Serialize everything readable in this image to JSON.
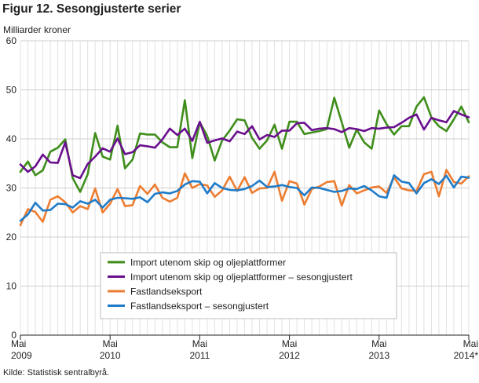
{
  "chart_data": {
    "type": "line",
    "title": "Figur 12. Sesongjusterte serier",
    "ylabel": "Milliarder kroner",
    "xlabel": "",
    "source": "Kilde: Statistisk sentralbyrå.",
    "ylim": [
      0,
      60
    ],
    "yticks": [
      0,
      10,
      20,
      30,
      40,
      50,
      60
    ],
    "grid": true,
    "legend_position": "lower-center",
    "x": [
      "2009-05",
      "2009-06",
      "2009-07",
      "2009-08",
      "2009-09",
      "2009-10",
      "2009-11",
      "2009-12",
      "2010-01",
      "2010-02",
      "2010-03",
      "2010-04",
      "2010-05",
      "2010-06",
      "2010-07",
      "2010-08",
      "2010-09",
      "2010-10",
      "2010-11",
      "2010-12",
      "2011-01",
      "2011-02",
      "2011-03",
      "2011-04",
      "2011-05",
      "2011-06",
      "2011-07",
      "2011-08",
      "2011-09",
      "2011-10",
      "2011-11",
      "2011-12",
      "2012-01",
      "2012-02",
      "2012-03",
      "2012-04",
      "2012-05",
      "2012-06",
      "2012-07",
      "2012-08",
      "2012-09",
      "2012-10",
      "2012-11",
      "2012-12",
      "2013-01",
      "2013-02",
      "2013-03",
      "2013-04",
      "2013-05",
      "2013-06",
      "2013-07",
      "2013-08",
      "2013-09",
      "2013-10",
      "2013-11",
      "2013-12",
      "2014-01",
      "2014-02",
      "2014-03",
      "2014-04",
      "2014-05"
    ],
    "xticks": [
      {
        "index": 0,
        "line1": "Mai",
        "line2": "2009"
      },
      {
        "index": 12,
        "line1": "Mai",
        "line2": "2010"
      },
      {
        "index": 24,
        "line1": "Mai",
        "line2": "2011"
      },
      {
        "index": 36,
        "line1": "Mai",
        "line2": "2012"
      },
      {
        "index": 48,
        "line1": "Mai",
        "line2": "2013"
      },
      {
        "index": 60,
        "line1": "Mai",
        "line2": "2014*"
      }
    ],
    "series": [
      {
        "name": "Import utenom skip og oljeplattformer",
        "color": "#3f8e1b",
        "values": [
          33.3,
          35.4,
          32.6,
          33.6,
          37.4,
          38.2,
          39.9,
          32.0,
          29.2,
          32.8,
          41.2,
          36.4,
          35.8,
          42.7,
          34.0,
          35.8,
          41.1,
          40.9,
          40.9,
          39.3,
          38.3,
          38.3,
          47.9,
          36.1,
          43.4,
          40.6,
          35.6,
          39.7,
          41.7,
          44.0,
          43.8,
          40.2,
          38.0,
          39.7,
          42.9,
          38.0,
          43.5,
          43.5,
          41.0,
          41.3,
          41.6,
          42.0,
          48.4,
          43.4,
          38.2,
          41.9,
          39.3,
          38.0,
          45.8,
          43.0,
          40.9,
          42.6,
          42.6,
          46.6,
          48.5,
          44.4,
          42.6,
          41.6,
          44.0,
          46.6,
          43.4
        ]
      },
      {
        "name": "Import utenom skip og oljeplattformer – sesongjustert",
        "color": "#6a0f8e",
        "values": [
          34.8,
          33.3,
          34.4,
          36.8,
          35.2,
          35.1,
          39.3,
          32.6,
          32.0,
          34.9,
          36.4,
          38.1,
          37.4,
          40.1,
          36.9,
          37.3,
          38.7,
          38.5,
          38.2,
          39.9,
          42.1,
          40.8,
          42.1,
          39.6,
          43.5,
          39.2,
          39.7,
          40.1,
          39.5,
          41.5,
          41.0,
          42.6,
          39.9,
          40.8,
          40.4,
          41.7,
          41.7,
          43.2,
          43.3,
          41.8,
          42.1,
          42.2,
          42.0,
          41.4,
          42.2,
          42.0,
          41.6,
          42.2,
          42.1,
          42.3,
          42.4,
          43.3,
          44.3,
          45.0,
          41.9,
          44.3,
          43.8,
          43.4,
          45.7,
          45.0,
          44.4
        ]
      },
      {
        "name": "Fastlandseksport",
        "color": "#ed7d31",
        "values": [
          22.4,
          25.7,
          25.1,
          23.1,
          27.6,
          28.3,
          27.1,
          25.0,
          26.3,
          25.7,
          29.9,
          25.0,
          26.8,
          29.8,
          26.3,
          26.5,
          30.4,
          28.8,
          30.7,
          28.0,
          27.2,
          28.0,
          33.0,
          30.0,
          30.8,
          30.5,
          28.2,
          29.5,
          32.3,
          29.4,
          32.2,
          29.0,
          29.9,
          30.0,
          33.3,
          27.4,
          31.4,
          30.9,
          26.6,
          29.8,
          30.3,
          31.2,
          31.4,
          26.4,
          30.6,
          28.9,
          29.5,
          30.1,
          30.3,
          29.0,
          32.2,
          29.9,
          29.5,
          29.4,
          32.8,
          33.3,
          28.3,
          33.7,
          31.2,
          30.9,
          32.4
        ]
      },
      {
        "name": "Fastlandseksport – sesongjustert",
        "color": "#1f7cc9",
        "values": [
          23.3,
          24.6,
          27.0,
          25.4,
          25.5,
          26.8,
          26.7,
          26.0,
          27.3,
          26.8,
          27.6,
          26.0,
          27.6,
          28.0,
          27.9,
          27.8,
          28.1,
          27.1,
          28.8,
          29.1,
          28.9,
          29.4,
          30.7,
          31.4,
          31.3,
          28.9,
          31.0,
          30.0,
          29.6,
          29.5,
          29.8,
          30.4,
          31.5,
          30.2,
          30.3,
          30.6,
          30.2,
          30.0,
          28.5,
          30.1,
          30.0,
          29.6,
          29.2,
          29.4,
          29.9,
          29.8,
          30.4,
          29.5,
          28.3,
          28.0,
          32.6,
          31.3,
          31.0,
          28.9,
          31.0,
          31.8,
          30.8,
          32.5,
          30.1,
          32.3,
          32.1
        ]
      }
    ]
  }
}
